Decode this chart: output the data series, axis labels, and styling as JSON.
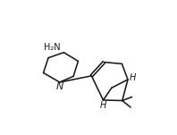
{
  "bg_color": "#ffffff",
  "line_color": "#1a1a1a",
  "line_width": 1.15,
  "font_size": 7.0,
  "xlim": [
    0,
    10
  ],
  "ylim": [
    0,
    8
  ]
}
